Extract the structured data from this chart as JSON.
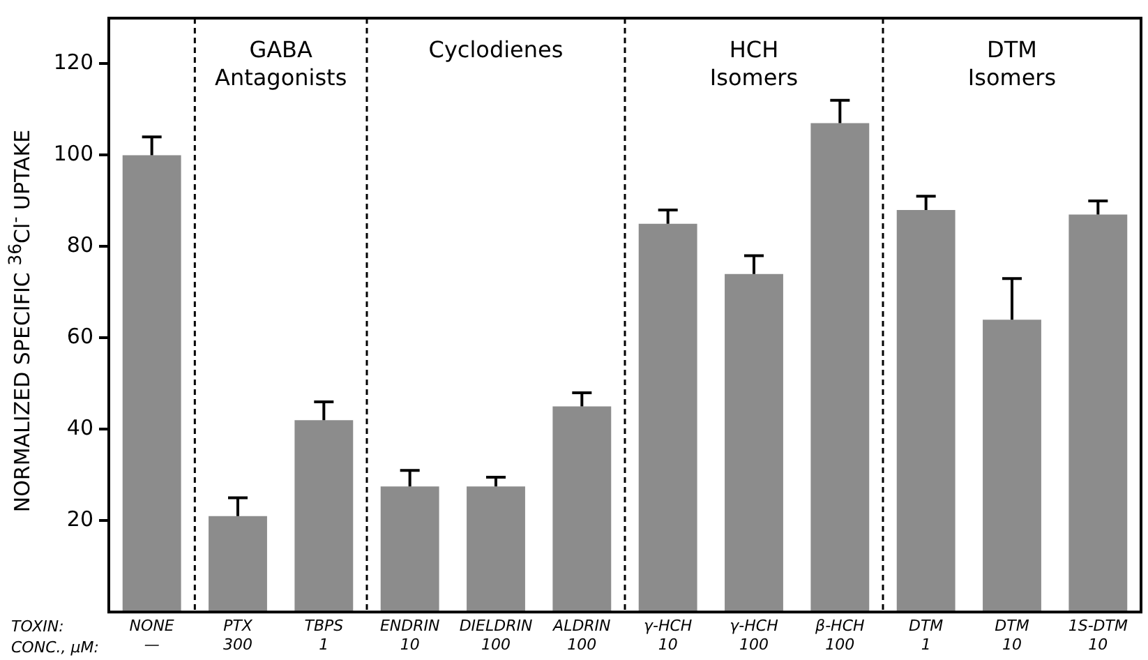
{
  "chart_data": {
    "type": "bar",
    "ylabel": "NORMALIZED SPECIFIC $^{36}$Cl$^{-}$ UPTAKE",
    "categories": [
      "NONE\n—",
      "PTX\n300",
      "TBPS\n1",
      "ENDRIN\n10",
      "DIELDRIN\n100",
      "ALDRIN\n100",
      "γ-HCH\n10",
      "γ-HCH\n100",
      "β-HCH\n100",
      "DTM\n1",
      "DTM\n10",
      "1S-DTM\n10"
    ],
    "values": [
      100,
      21,
      42,
      27.5,
      27.5,
      45,
      85,
      74,
      107,
      88,
      64,
      87
    ],
    "errors": [
      [
        100,
        104
      ],
      [
        21,
        25
      ],
      [
        42,
        46
      ],
      [
        27.5,
        31
      ],
      [
        27.5,
        29.5
      ],
      [
        45,
        48
      ],
      [
        85,
        88
      ],
      [
        74,
        78
      ],
      [
        107,
        112
      ],
      [
        88,
        91
      ],
      [
        64,
        73
      ],
      [
        87,
        90
      ]
    ],
    "color": "#8c8c8c",
    "ylim": [
      0,
      130
    ],
    "yticks": [
      20,
      40,
      60,
      80,
      100,
      120
    ],
    "grid": false,
    "legend": false,
    "annotations": [
      "TOXIN:",
      "CONC., μM:",
      "GABA\nAntagonists",
      "Cyclodienes",
      "HCH\nIsomers",
      "DTM\nIsomers"
    ]
  }
}
